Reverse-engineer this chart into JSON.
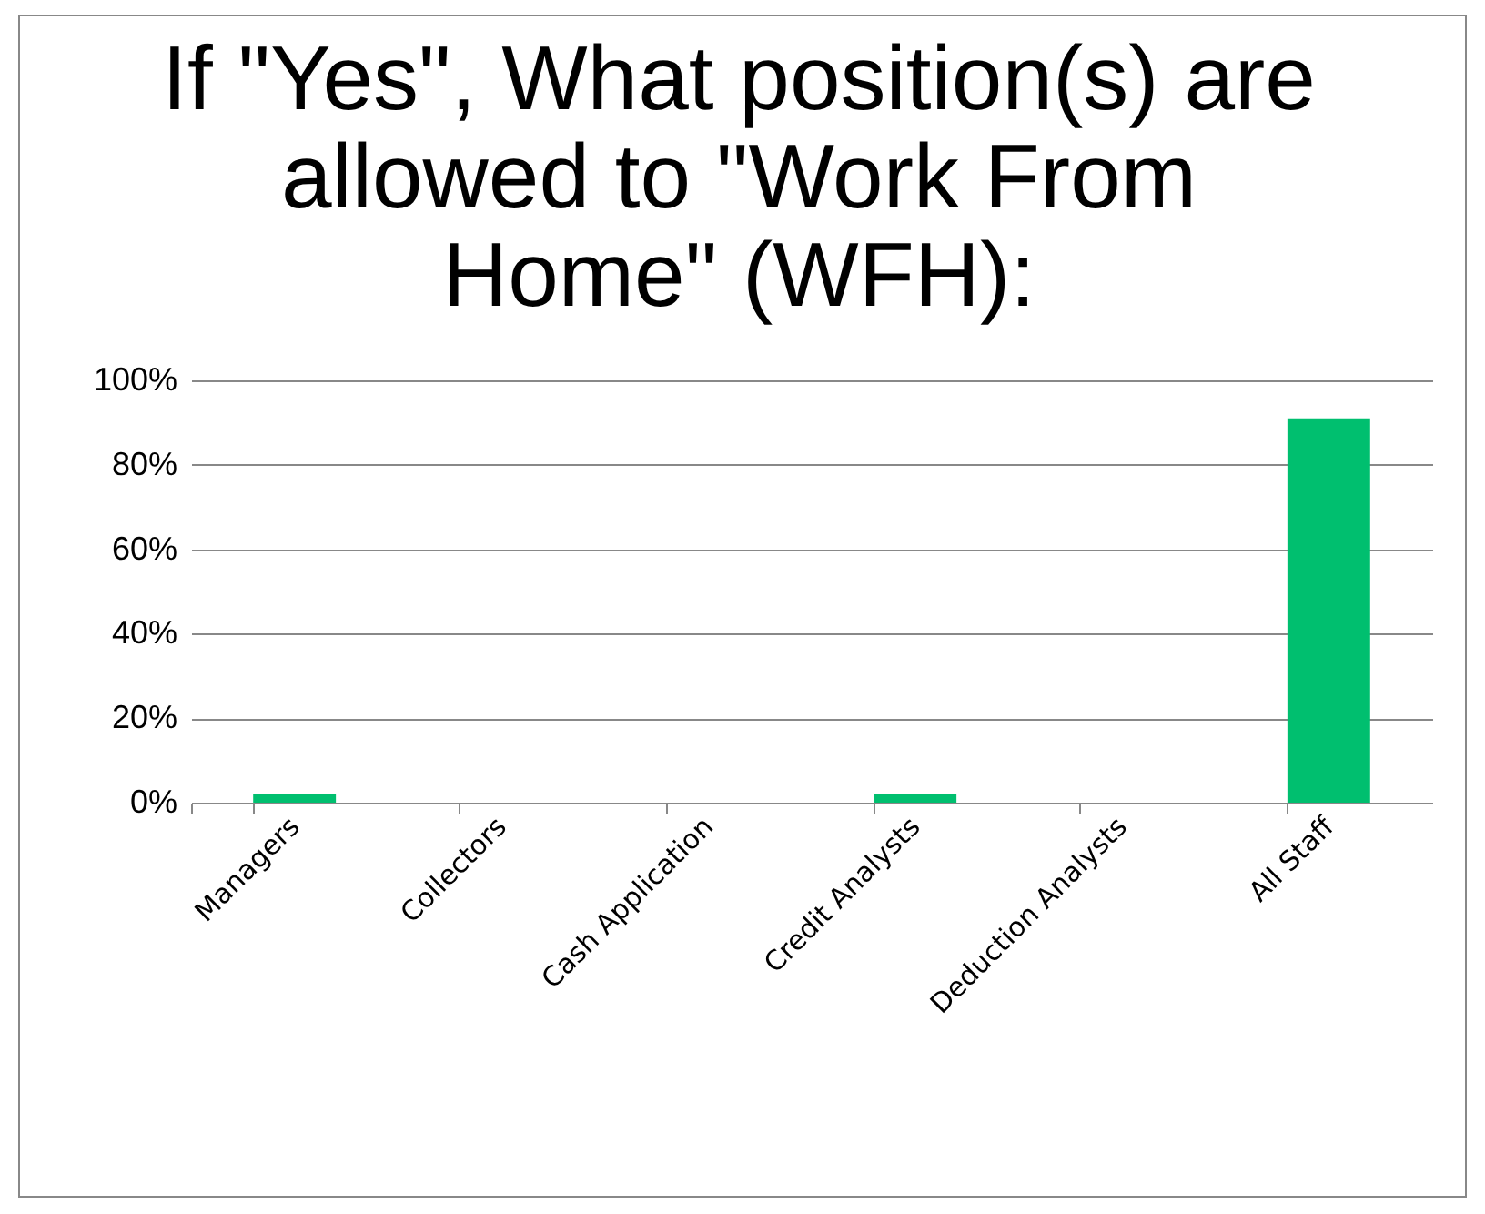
{
  "chart_data": {
    "type": "bar",
    "title": "If \"Yes\", What position(s) are allowed to \"Work From Home\" (WFH):",
    "categories": [
      "Managers",
      "Collectors",
      "Cash Application",
      "Credit Analysts",
      "Deduction Analysts",
      "All Staff"
    ],
    "values": [
      2,
      0,
      0,
      2,
      0,
      91
    ],
    "color": "#00bf6f",
    "ylim": [
      0,
      100
    ],
    "yticks": [
      {
        "value": 0,
        "label": "0%"
      },
      {
        "value": 20,
        "label": "20%"
      },
      {
        "value": 40,
        "label": "40%"
      },
      {
        "value": 60,
        "label": "60%"
      },
      {
        "value": 80,
        "label": "80%"
      },
      {
        "value": 100,
        "label": "100%"
      }
    ],
    "grid": "y"
  }
}
